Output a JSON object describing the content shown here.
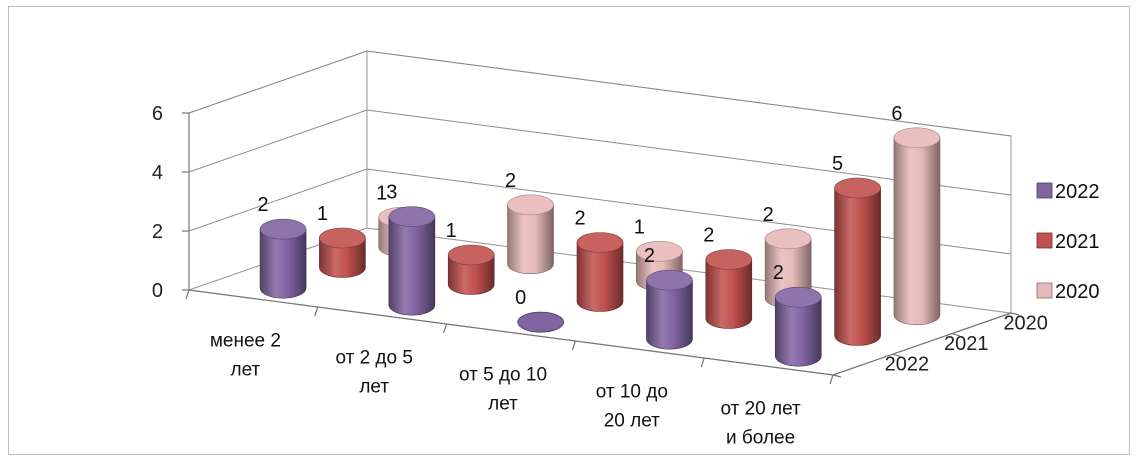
{
  "chart_data": {
    "type": "bar",
    "subtype": "3d-cylinder",
    "title": "",
    "xlabel": "",
    "ylabel": "",
    "ylim": [
      0,
      6
    ],
    "y_ticks": [
      "0",
      "2",
      "4",
      "6"
    ],
    "grid": true,
    "legend_position": "right",
    "categories": [
      [
        "менее 2",
        "лет"
      ],
      [
        "от 2 до 5",
        "лет"
      ],
      [
        "от 5 до 10",
        "лет"
      ],
      [
        "от 10 до",
        "20 лет"
      ],
      [
        "от 20 лет",
        "и более"
      ]
    ],
    "depth_labels": [
      "2020",
      "2021",
      "2022"
    ],
    "series": [
      {
        "name": "2022",
        "values": [
          2,
          3,
          0,
          2,
          2
        ],
        "color": "#8064a2"
      },
      {
        "name": "2021",
        "values": [
          1,
          1,
          2,
          2,
          5
        ],
        "color": "#c0504d"
      },
      {
        "name": "2020",
        "values": [
          1,
          2,
          1,
          2,
          6
        ],
        "color": "#e6b9b8"
      }
    ]
  }
}
